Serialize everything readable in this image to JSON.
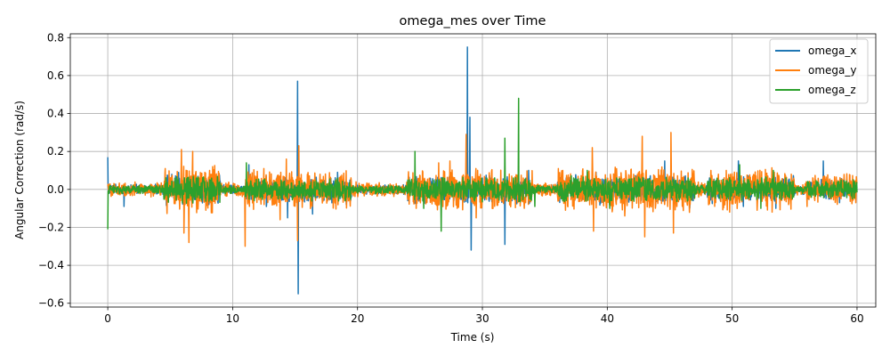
{
  "chart_data": {
    "type": "line",
    "title": "omega_mes over Time",
    "xlabel": "Time (s)",
    "ylabel": "Angular Correction (rad/s)",
    "xlim": [
      -3,
      61.5
    ],
    "ylim": [
      -0.62,
      0.82
    ],
    "xticks": [
      0,
      10,
      20,
      30,
      40,
      50,
      60
    ],
    "yticks": [
      -0.6,
      -0.4,
      -0.2,
      0.0,
      0.2,
      0.4,
      0.6,
      0.8
    ],
    "xtick_labels": [
      "0",
      "10",
      "20",
      "30",
      "40",
      "50",
      "60"
    ],
    "ytick_labels": [
      "−0.6",
      "−0.4",
      "−0.2",
      "0.0",
      "0.2",
      "0.4",
      "0.6",
      "0.8"
    ],
    "grid": true,
    "legend_position": "top-right",
    "x_range": [
      0,
      60
    ],
    "series": [
      {
        "name": "omega_x",
        "color": "#1f77b4",
        "typical_amplitude": 0.04,
        "spikes": [
          {
            "x": 0.0,
            "y": 0.17
          },
          {
            "x": 1.3,
            "y": -0.09
          },
          {
            "x": 11.3,
            "y": 0.13
          },
          {
            "x": 12.7,
            "y": -0.09
          },
          {
            "x": 14.4,
            "y": -0.15
          },
          {
            "x": 15.2,
            "y": 0.57
          },
          {
            "x": 15.25,
            "y": -0.55
          },
          {
            "x": 16.4,
            "y": -0.13
          },
          {
            "x": 18.4,
            "y": 0.09
          },
          {
            "x": 19.1,
            "y": -0.08
          },
          {
            "x": 28.8,
            "y": 0.75
          },
          {
            "x": 29.0,
            "y": 0.38
          },
          {
            "x": 29.1,
            "y": -0.32
          },
          {
            "x": 31.8,
            "y": -0.29
          },
          {
            "x": 33.7,
            "y": 0.1
          },
          {
            "x": 39.1,
            "y": 0.09
          },
          {
            "x": 44.6,
            "y": 0.15
          },
          {
            "x": 46.6,
            "y": -0.1
          },
          {
            "x": 50.5,
            "y": 0.15
          },
          {
            "x": 50.9,
            "y": -0.09
          },
          {
            "x": 53.5,
            "y": -0.1
          },
          {
            "x": 57.3,
            "y": 0.15
          },
          {
            "x": 58.6,
            "y": -0.07
          }
        ]
      },
      {
        "name": "omega_y",
        "color": "#ff7f0e",
        "typical_amplitude": 0.06,
        "spikes": [
          {
            "x": 4.6,
            "y": 0.11
          },
          {
            "x": 5.9,
            "y": 0.21
          },
          {
            "x": 6.1,
            "y": -0.23
          },
          {
            "x": 6.5,
            "y": -0.28
          },
          {
            "x": 6.8,
            "y": 0.2
          },
          {
            "x": 8.4,
            "y": 0.12
          },
          {
            "x": 11.0,
            "y": -0.3
          },
          {
            "x": 12.5,
            "y": 0.11
          },
          {
            "x": 13.8,
            "y": -0.16
          },
          {
            "x": 14.3,
            "y": 0.16
          },
          {
            "x": 15.2,
            "y": -0.27
          },
          {
            "x": 15.3,
            "y": 0.23
          },
          {
            "x": 17.0,
            "y": 0.08
          },
          {
            "x": 24.7,
            "y": -0.1
          },
          {
            "x": 26.5,
            "y": 0.14
          },
          {
            "x": 27.4,
            "y": 0.15
          },
          {
            "x": 28.7,
            "y": 0.29
          },
          {
            "x": 29.5,
            "y": -0.15
          },
          {
            "x": 38.8,
            "y": 0.22
          },
          {
            "x": 38.9,
            "y": -0.22
          },
          {
            "x": 41.4,
            "y": -0.14
          },
          {
            "x": 42.8,
            "y": 0.28
          },
          {
            "x": 43.0,
            "y": -0.25
          },
          {
            "x": 45.1,
            "y": 0.3
          },
          {
            "x": 45.3,
            "y": -0.23
          },
          {
            "x": 48.3,
            "y": 0.1
          },
          {
            "x": 49.8,
            "y": -0.12
          },
          {
            "x": 52.0,
            "y": -0.11
          },
          {
            "x": 53.2,
            "y": -0.12
          },
          {
            "x": 56.0,
            "y": -0.09
          },
          {
            "x": 59.9,
            "y": -0.07
          }
        ]
      },
      {
        "name": "omega_z",
        "color": "#2ca02c",
        "typical_amplitude": 0.035,
        "spikes": [
          {
            "x": 0.0,
            "y": -0.21
          },
          {
            "x": 11.1,
            "y": 0.14
          },
          {
            "x": 24.6,
            "y": 0.2
          },
          {
            "x": 25.3,
            "y": -0.1
          },
          {
            "x": 26.7,
            "y": -0.22
          },
          {
            "x": 31.8,
            "y": 0.27
          },
          {
            "x": 32.9,
            "y": 0.48
          },
          {
            "x": 34.2,
            "y": -0.09
          },
          {
            "x": 38.4,
            "y": 0.1
          },
          {
            "x": 40.2,
            "y": -0.1
          },
          {
            "x": 50.6,
            "y": 0.13
          },
          {
            "x": 52.3,
            "y": -0.1
          },
          {
            "x": 53.3,
            "y": 0.1
          }
        ]
      }
    ]
  }
}
